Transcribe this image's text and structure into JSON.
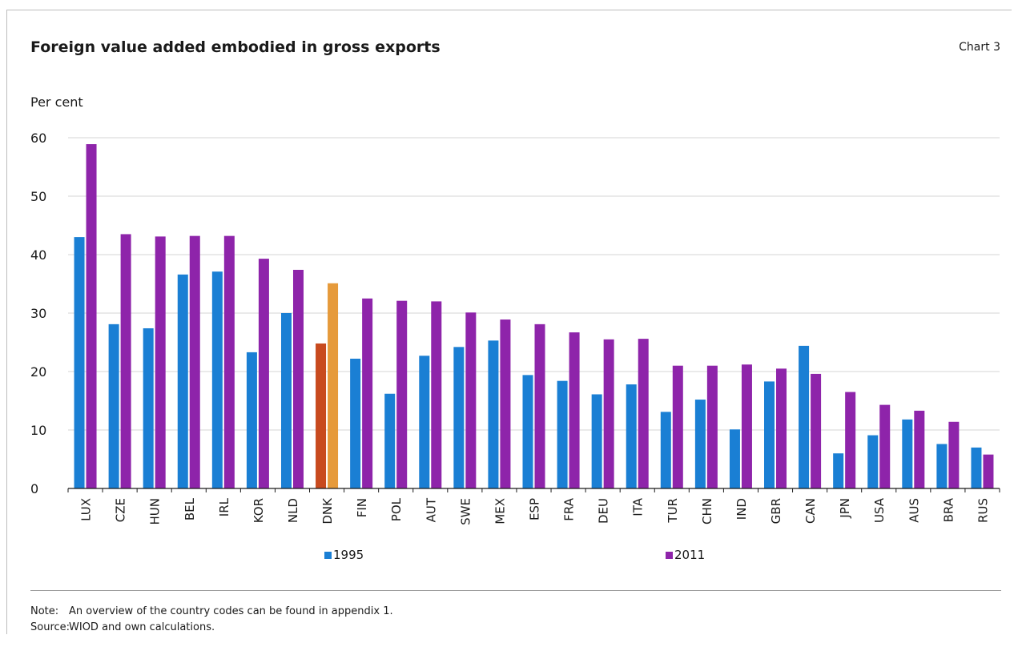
{
  "header": {
    "title": "Foreign value added embodied in gross exports",
    "chart_label": "Chart 3"
  },
  "footer": {
    "note_key": "Note:",
    "note_text": "An overview of the country codes can be found in appendix 1.",
    "source_key": "Source:",
    "source_text": "WIOD and own calculations."
  },
  "chart_data": {
    "type": "bar",
    "ylabel": "Per cent",
    "ylim": [
      0,
      60
    ],
    "yticks": [
      0,
      10,
      20,
      30,
      40,
      50,
      60
    ],
    "grid": true,
    "legend_position": "bottom",
    "categories": [
      "LUX",
      "CZE",
      "HUN",
      "BEL",
      "IRL",
      "KOR",
      "NLD",
      "DNK",
      "FIN",
      "POL",
      "AUT",
      "SWE",
      "MEX",
      "ESP",
      "FRA",
      "DEU",
      "ITA",
      "TUR",
      "CHN",
      "IND",
      "GBR",
      "CAN",
      "JPN",
      "USA",
      "AUS",
      "BRA",
      "RUS"
    ],
    "series": [
      {
        "name": "1995",
        "color": "#1a7fd4",
        "values": [
          43.0,
          28.1,
          27.4,
          36.6,
          37.1,
          23.3,
          30.0,
          24.8,
          22.2,
          16.2,
          22.7,
          24.2,
          25.3,
          19.4,
          18.4,
          16.1,
          17.8,
          13.1,
          15.2,
          10.1,
          18.3,
          24.4,
          6.0,
          9.1,
          11.8,
          7.6,
          7.0
        ]
      },
      {
        "name": "2011",
        "color": "#8e24aa",
        "values": [
          58.9,
          43.5,
          43.1,
          43.2,
          43.2,
          39.3,
          37.4,
          35.1,
          32.5,
          32.1,
          32.0,
          30.1,
          28.9,
          28.1,
          26.7,
          25.5,
          25.6,
          21.0,
          21.0,
          21.2,
          20.5,
          19.6,
          16.5,
          14.3,
          13.3,
          11.4,
          5.8
        ]
      }
    ],
    "highlight": {
      "category": "DNK",
      "colors": [
        "#c84a1e",
        "#e69a3a"
      ]
    }
  }
}
